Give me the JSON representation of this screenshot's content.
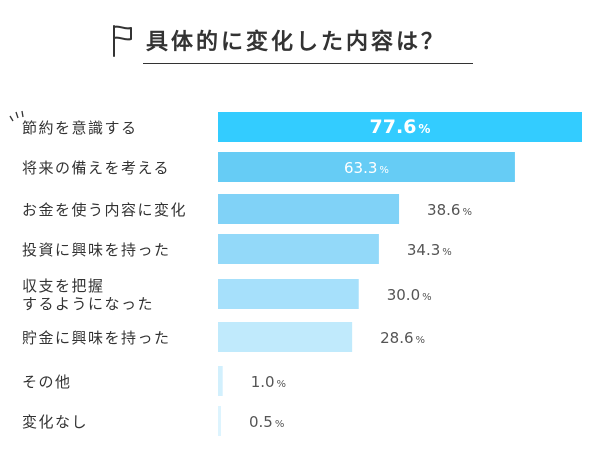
{
  "chart_data": {
    "type": "bar",
    "orientation": "horizontal",
    "title": "具体的に変化した内容は？",
    "categories": [
      [
        "節約を意識する"
      ],
      [
        "将来の備えを考える"
      ],
      [
        "お金を使う内容に変化"
      ],
      [
        "投資に興味を持った"
      ],
      [
        "収支を把握",
        "するようになった"
      ],
      [
        "貯金に興味を持った"
      ],
      [
        "その他"
      ],
      [
        "変化なし"
      ]
    ],
    "values": [
      77.6,
      63.3,
      38.6,
      34.3,
      30.0,
      28.6,
      1.0,
      0.5
    ],
    "value_labels": [
      "77.6",
      "63.3",
      "38.6",
      "34.3",
      "30.0",
      "28.6",
      "1.0",
      "0.5"
    ],
    "unit": "%",
    "xlim": [
      0,
      77.6
    ],
    "grid": false,
    "legend": "none",
    "colors": [
      "#33ccff",
      "#66ccf5",
      "#80d2f7",
      "#93d9f9",
      "#a6e0fb",
      "#c0eafc",
      "#d2f0fd",
      "#ddf4fe"
    ]
  }
}
